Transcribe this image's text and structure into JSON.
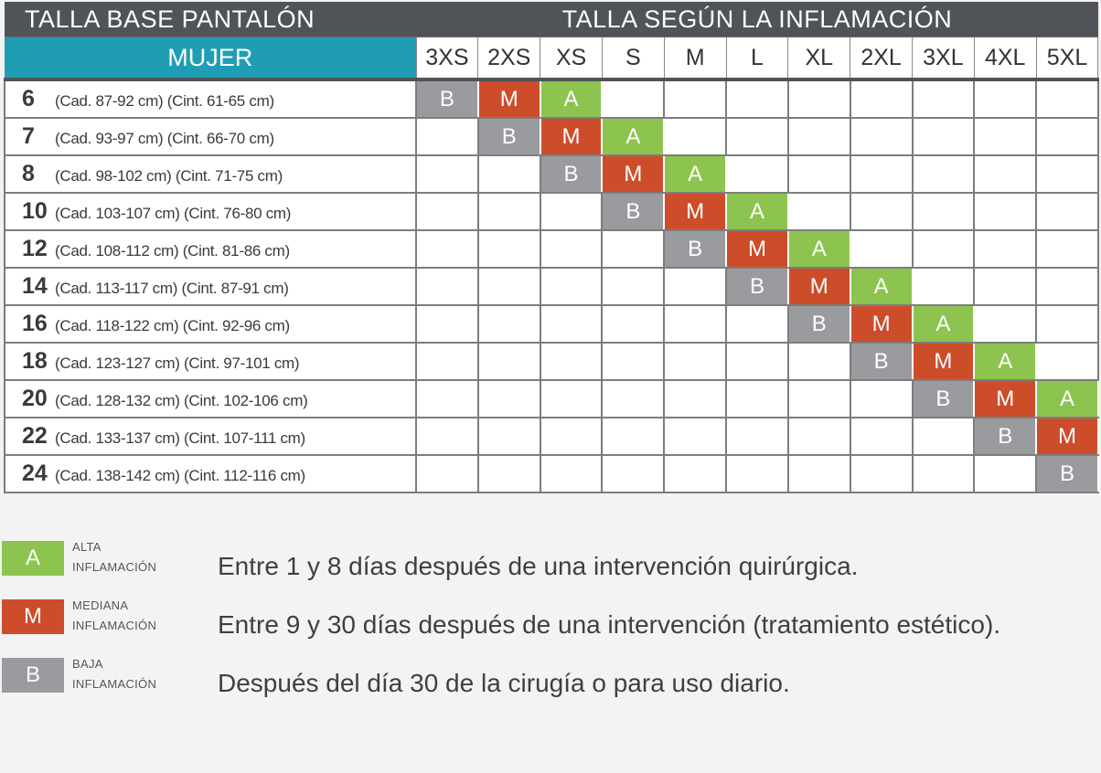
{
  "header": {
    "base_title": "TALLA BASE PANTALÓN",
    "inflammation_title": "TALLA SEGÚN LA INFLAMACIÓN",
    "group_label": "MUJER"
  },
  "sizes": [
    "3XS",
    "2XS",
    "XS",
    "S",
    "M",
    "L",
    "XL",
    "2XL",
    "3XL",
    "4XL",
    "5XL"
  ],
  "rows": [
    {
      "num": "6",
      "range": "(Cad. 87-92 cm) (Cint. 61-65 cm)",
      "cells": {
        "0": "B",
        "1": "M",
        "2": "A"
      }
    },
    {
      "num": "7",
      "range": "(Cad. 93-97 cm) (Cint. 66-70 cm)",
      "cells": {
        "1": "B",
        "2": "M",
        "3": "A"
      }
    },
    {
      "num": "8",
      "range": "(Cad. 98-102 cm) (Cint. 71-75 cm)",
      "cells": {
        "2": "B",
        "3": "M",
        "4": "A"
      }
    },
    {
      "num": "10",
      "range": "(Cad. 103-107 cm) (Cint. 76-80 cm)",
      "cells": {
        "3": "B",
        "4": "M",
        "5": "A"
      }
    },
    {
      "num": "12",
      "range": "(Cad. 108-112 cm) (Cint. 81-86 cm)",
      "cells": {
        "4": "B",
        "5": "M",
        "6": "A"
      }
    },
    {
      "num": "14",
      "range": "(Cad. 113-117 cm) (Cint. 87-91 cm)",
      "cells": {
        "5": "B",
        "6": "M",
        "7": "A"
      }
    },
    {
      "num": "16",
      "range": "(Cad. 118-122 cm) (Cint. 92-96 cm)",
      "cells": {
        "6": "B",
        "7": "M",
        "8": "A"
      }
    },
    {
      "num": "18",
      "range": "(Cad. 123-127 cm) (Cint. 97-101 cm)",
      "cells": {
        "7": "B",
        "8": "M",
        "9": "A"
      }
    },
    {
      "num": "20",
      "range": "(Cad. 128-132 cm) (Cint. 102-106 cm)",
      "cells": {
        "8": "B",
        "9": "M",
        "10": "A"
      }
    },
    {
      "num": "22",
      "range": "(Cad. 133-137 cm) (Cint. 107-111 cm)",
      "cells": {
        "9": "B",
        "10": "M"
      }
    },
    {
      "num": "24",
      "range": "(Cad. 138-142 cm) (Cint. 112-116 cm)",
      "cells": {
        "10": "B"
      }
    }
  ],
  "legend": [
    {
      "code": "A",
      "level": "ALTA",
      "word": "INFLAMACIÓN",
      "description": "Entre 1 y 8 días después de una intervención quirúrgica.",
      "color": "#8dc44f"
    },
    {
      "code": "M",
      "level": "MEDIANA",
      "word": "INFLAMACIÓN",
      "description": "Entre 9 y 30 días después de una intervención (tratamiento estético).",
      "color": "#cd4d2b"
    },
    {
      "code": "B",
      "level": "BAJA",
      "word": "INFLAMACIÓN",
      "description": "Después del día 30 de la cirugía o para uso diario.",
      "color": "#999b9e"
    }
  ],
  "colors": {
    "header_bg": "#505357",
    "group_bg": "#1f9db5",
    "alta": "#8dc44f",
    "mediana": "#cd4d2b",
    "baja": "#999b9e"
  }
}
